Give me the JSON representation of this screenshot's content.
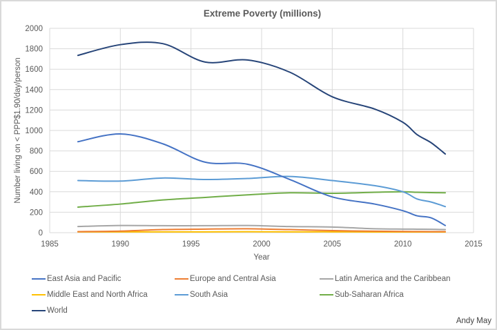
{
  "chart_data": {
    "type": "line",
    "title": "Extreme Poverty (millions)",
    "xlabel": "Year",
    "ylabel": "Number living on < PPP$1.90/day/person",
    "xlim": [
      1985,
      2015
    ],
    "ylim": [
      0,
      2000
    ],
    "xticks": [
      1985,
      1990,
      1995,
      2000,
      2005,
      2010,
      2015
    ],
    "yticks": [
      0,
      200,
      400,
      600,
      800,
      1000,
      1200,
      1400,
      1600,
      1800,
      2000
    ],
    "grid": true,
    "smooth": true,
    "legend_position": "bottom",
    "x": [
      1987,
      1990,
      1993,
      1996,
      1999,
      2002,
      2005,
      2008,
      2010,
      2011,
      2012,
      2013
    ],
    "series": [
      {
        "name": "East Asia and Pacific",
        "color": "#4472c4",
        "values": [
          890,
          966,
          870,
          690,
          670,
          520,
          350,
          280,
          215,
          165,
          145,
          70
        ]
      },
      {
        "name": "Europe and Central Asia",
        "color": "#ed7d31",
        "values": [
          10,
          15,
          30,
          35,
          38,
          30,
          20,
          14,
          12,
          11,
          10,
          10
        ]
      },
      {
        "name": "Latin America and the Caribbean",
        "color": "#a5a5a5",
        "values": [
          60,
          70,
          68,
          68,
          70,
          60,
          55,
          38,
          35,
          34,
          33,
          30
        ]
      },
      {
        "name": "Middle East and North Africa",
        "color": "#ffc000",
        "values": [
          8,
          8,
          8,
          8,
          9,
          8,
          8,
          7,
          7,
          7,
          7,
          7
        ]
      },
      {
        "name": "South Asia",
        "color": "#5b9bd5",
        "values": [
          510,
          505,
          535,
          520,
          530,
          550,
          510,
          460,
          400,
          330,
          300,
          255
        ]
      },
      {
        "name": "Sub-Saharan Africa",
        "color": "#70ad47",
        "values": [
          250,
          280,
          320,
          345,
          370,
          390,
          385,
          395,
          400,
          395,
          392,
          390
        ]
      },
      {
        "name": "World",
        "color": "#264478",
        "values": [
          1735,
          1840,
          1850,
          1670,
          1690,
          1570,
          1330,
          1210,
          1080,
          960,
          880,
          770
        ]
      }
    ],
    "annotations": [
      "Andy May"
    ]
  },
  "credit": "Andy May"
}
